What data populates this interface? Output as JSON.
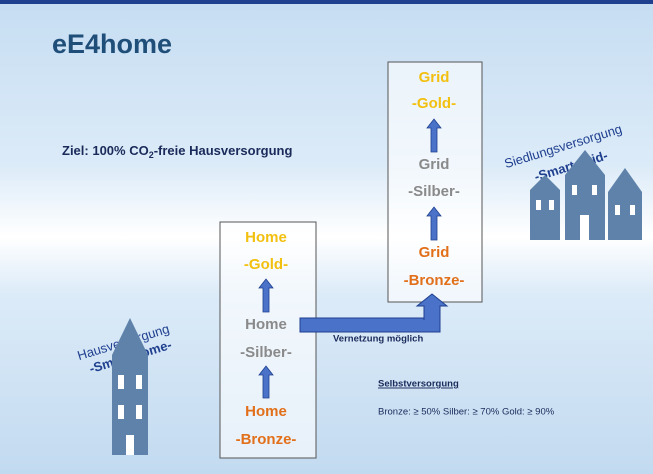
{
  "title": "eE4home",
  "goal": {
    "prefix": "Ziel: 100% CO",
    "subscript": "2",
    "suffix": "-freie Hausversorgung"
  },
  "home": {
    "levels": [
      {
        "name": "Home",
        "level": "-Gold-"
      },
      {
        "name": "Home",
        "level": "-Silber-"
      },
      {
        "name": "Home",
        "level": "-Bronze-"
      }
    ]
  },
  "grid": {
    "levels": [
      {
        "name": "Grid",
        "level": "-Gold-"
      },
      {
        "name": "Grid",
        "level": "-Silber-"
      },
      {
        "name": "Grid",
        "level": "-Bronze-"
      }
    ]
  },
  "left_label": {
    "line1": "Hausversorgung",
    "line2": "-Smart Home-"
  },
  "right_label": {
    "line1": "Siedlungsversorgung",
    "line2": "-Smart Grid-"
  },
  "connection": "Vernetzung möglich",
  "self_supply": {
    "heading": "Selbstversorgung",
    "criteria": "Bronze: ≥ 50% Silber: ≥ 70% Gold: ≥ 90%"
  }
}
